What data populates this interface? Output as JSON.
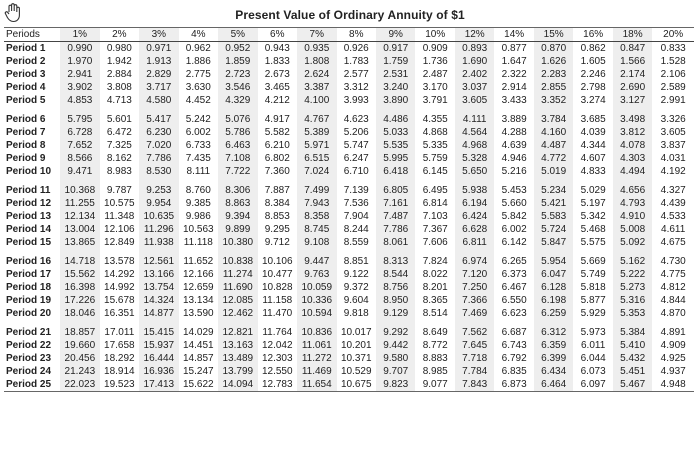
{
  "title": "Present Value of Ordinary Annuity of $1",
  "header": [
    "Periods",
    "1%",
    "2%",
    "3%",
    "4%",
    "5%",
    "6%",
    "7%",
    "8%",
    "9%",
    "10%",
    "12%",
    "14%",
    "15%",
    "16%",
    "18%",
    "20%"
  ],
  "groups": [
    [
      [
        "Period 1",
        "0.990",
        "0.980",
        "0.971",
        "0.962",
        "0.952",
        "0.943",
        "0.935",
        "0.926",
        "0.917",
        "0.909",
        "0.893",
        "0.877",
        "0.870",
        "0.862",
        "0.847",
        "0.833"
      ],
      [
        "Period 2",
        "1.970",
        "1.942",
        "1.913",
        "1.886",
        "1.859",
        "1.833",
        "1.808",
        "1.783",
        "1.759",
        "1.736",
        "1.690",
        "1.647",
        "1.626",
        "1.605",
        "1.566",
        "1.528"
      ],
      [
        "Period 3",
        "2.941",
        "2.884",
        "2.829",
        "2.775",
        "2.723",
        "2.673",
        "2.624",
        "2.577",
        "2.531",
        "2.487",
        "2.402",
        "2.322",
        "2.283",
        "2.246",
        "2.174",
        "2.106"
      ],
      [
        "Period 4",
        "3.902",
        "3.808",
        "3.717",
        "3.630",
        "3.546",
        "3.465",
        "3.387",
        "3.312",
        "3.240",
        "3.170",
        "3.037",
        "2.914",
        "2.855",
        "2.798",
        "2.690",
        "2.589"
      ],
      [
        "Period 5",
        "4.853",
        "4.713",
        "4.580",
        "4.452",
        "4.329",
        "4.212",
        "4.100",
        "3.993",
        "3.890",
        "3.791",
        "3.605",
        "3.433",
        "3.352",
        "3.274",
        "3.127",
        "2.991"
      ]
    ],
    [
      [
        "Period 6",
        "5.795",
        "5.601",
        "5.417",
        "5.242",
        "5.076",
        "4.917",
        "4.767",
        "4.623",
        "4.486",
        "4.355",
        "4.111",
        "3.889",
        "3.784",
        "3.685",
        "3.498",
        "3.326"
      ],
      [
        "Period 7",
        "6.728",
        "6.472",
        "6.230",
        "6.002",
        "5.786",
        "5.582",
        "5.389",
        "5.206",
        "5.033",
        "4.868",
        "4.564",
        "4.288",
        "4.160",
        "4.039",
        "3.812",
        "3.605"
      ],
      [
        "Period 8",
        "7.652",
        "7.325",
        "7.020",
        "6.733",
        "6.463",
        "6.210",
        "5.971",
        "5.747",
        "5.535",
        "5.335",
        "4.968",
        "4.639",
        "4.487",
        "4.344",
        "4.078",
        "3.837"
      ],
      [
        "Period 9",
        "8.566",
        "8.162",
        "7.786",
        "7.435",
        "7.108",
        "6.802",
        "6.515",
        "6.247",
        "5.995",
        "5.759",
        "5.328",
        "4.946",
        "4.772",
        "4.607",
        "4.303",
        "4.031"
      ],
      [
        "Period 10",
        "9.471",
        "8.983",
        "8.530",
        "8.111",
        "7.722",
        "7.360",
        "7.024",
        "6.710",
        "6.418",
        "6.145",
        "5.650",
        "5.216",
        "5.019",
        "4.833",
        "4.494",
        "4.192"
      ]
    ],
    [
      [
        "Period 11",
        "10.368",
        "9.787",
        "9.253",
        "8.760",
        "8.306",
        "7.887",
        "7.499",
        "7.139",
        "6.805",
        "6.495",
        "5.938",
        "5.453",
        "5.234",
        "5.029",
        "4.656",
        "4.327"
      ],
      [
        "Period 12",
        "11.255",
        "10.575",
        "9.954",
        "9.385",
        "8.863",
        "8.384",
        "7.943",
        "7.536",
        "7.161",
        "6.814",
        "6.194",
        "5.660",
        "5.421",
        "5.197",
        "4.793",
        "4.439"
      ],
      [
        "Period 13",
        "12.134",
        "11.348",
        "10.635",
        "9.986",
        "9.394",
        "8.853",
        "8.358",
        "7.904",
        "7.487",
        "7.103",
        "6.424",
        "5.842",
        "5.583",
        "5.342",
        "4.910",
        "4.533"
      ],
      [
        "Period 14",
        "13.004",
        "12.106",
        "11.296",
        "10.563",
        "9.899",
        "9.295",
        "8.745",
        "8.244",
        "7.786",
        "7.367",
        "6.628",
        "6.002",
        "5.724",
        "5.468",
        "5.008",
        "4.611"
      ],
      [
        "Period 15",
        "13.865",
        "12.849",
        "11.938",
        "11.118",
        "10.380",
        "9.712",
        "9.108",
        "8.559",
        "8.061",
        "7.606",
        "6.811",
        "6.142",
        "5.847",
        "5.575",
        "5.092",
        "4.675"
      ]
    ],
    [
      [
        "Period 16",
        "14.718",
        "13.578",
        "12.561",
        "11.652",
        "10.838",
        "10.106",
        "9.447",
        "8.851",
        "8.313",
        "7.824",
        "6.974",
        "6.265",
        "5.954",
        "5.669",
        "5.162",
        "4.730"
      ],
      [
        "Period 17",
        "15.562",
        "14.292",
        "13.166",
        "12.166",
        "11.274",
        "10.477",
        "9.763",
        "9.122",
        "8.544",
        "8.022",
        "7.120",
        "6.373",
        "6.047",
        "5.749",
        "5.222",
        "4.775"
      ],
      [
        "Period 18",
        "16.398",
        "14.992",
        "13.754",
        "12.659",
        "11.690",
        "10.828",
        "10.059",
        "9.372",
        "8.756",
        "8.201",
        "7.250",
        "6.467",
        "6.128",
        "5.818",
        "5.273",
        "4.812"
      ],
      [
        "Period 19",
        "17.226",
        "15.678",
        "14.324",
        "13.134",
        "12.085",
        "11.158",
        "10.336",
        "9.604",
        "8.950",
        "8.365",
        "7.366",
        "6.550",
        "6.198",
        "5.877",
        "5.316",
        "4.844"
      ],
      [
        "Period 20",
        "18.046",
        "16.351",
        "14.877",
        "13.590",
        "12.462",
        "11.470",
        "10.594",
        "9.818",
        "9.129",
        "8.514",
        "7.469",
        "6.623",
        "6.259",
        "5.929",
        "5.353",
        "4.870"
      ]
    ],
    [
      [
        "Period 21",
        "18.857",
        "17.011",
        "15.415",
        "14.029",
        "12.821",
        "11.764",
        "10.836",
        "10.017",
        "9.292",
        "8.649",
        "7.562",
        "6.687",
        "6.312",
        "5.973",
        "5.384",
        "4.891"
      ],
      [
        "Period 22",
        "19.660",
        "17.658",
        "15.937",
        "14.451",
        "13.163",
        "12.042",
        "11.061",
        "10.201",
        "9.442",
        "8.772",
        "7.645",
        "6.743",
        "6.359",
        "6.011",
        "5.410",
        "4.909"
      ],
      [
        "Period 23",
        "20.456",
        "18.292",
        "16.444",
        "14.857",
        "13.489",
        "12.303",
        "11.272",
        "10.371",
        "9.580",
        "8.883",
        "7.718",
        "6.792",
        "6.399",
        "6.044",
        "5.432",
        "4.925"
      ],
      [
        "Period 24",
        "21.243",
        "18.914",
        "16.936",
        "15.247",
        "13.799",
        "12.550",
        "11.469",
        "10.529",
        "9.707",
        "8.985",
        "7.784",
        "6.835",
        "6.434",
        "6.073",
        "5.451",
        "4.937"
      ],
      [
        "Period 25",
        "22.023",
        "19.523",
        "17.413",
        "15.622",
        "14.094",
        "12.783",
        "11.654",
        "10.675",
        "9.823",
        "9.077",
        "7.843",
        "6.873",
        "6.464",
        "6.097",
        "5.467",
        "4.948"
      ]
    ]
  ]
}
